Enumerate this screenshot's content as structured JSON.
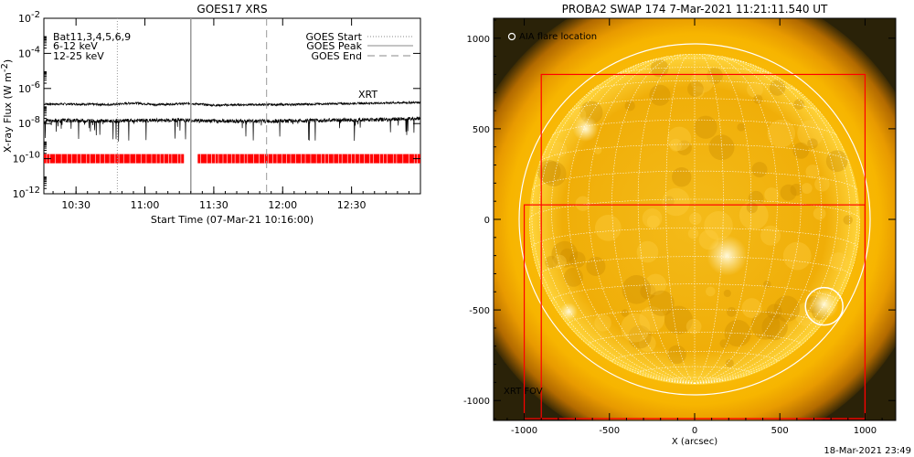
{
  "footer_timestamp": "18-Mar-2021 23:49",
  "chart_data": [
    {
      "type": "line",
      "title": "GOES17 XRS",
      "xlabel": "Start Time (07-Mar-21 10:16:00)",
      "ylabel": "X-ray Flux (W m",
      "ylabel_sup": "-2",
      "ylabel_close": ")",
      "xlim": [
        "10:16",
        "13:00"
      ],
      "ylim": [
        1e-12,
        0.01
      ],
      "yscale": "log",
      "x_ticks": [
        "10:30",
        "11:00",
        "11:30",
        "12:00",
        "12:30"
      ],
      "y_ticks": [
        {
          "base": "10",
          "exp": "-12",
          "value": 1e-12
        },
        {
          "base": "10",
          "exp": "-10",
          "value": 1e-10
        },
        {
          "base": "10",
          "exp": "-8",
          "value": 1e-08
        },
        {
          "base": "10",
          "exp": "-6",
          "value": 1e-06
        },
        {
          "base": "10",
          "exp": "-4",
          "value": 0.0001
        },
        {
          "base": "10",
          "exp": "-2",
          "value": 0.01
        }
      ],
      "band_labels": [
        {
          "text": "Bat11,3,4,5,6,9",
          "color": "#000000"
        },
        {
          "text": "6-12 keV",
          "color": "#d000d0"
        },
        {
          "text": "12-25 keV",
          "color": "#20c020"
        }
      ],
      "legend": [
        {
          "text": "GOES Start",
          "style": "dotted"
        },
        {
          "text": "GOES Peak",
          "style": "solid"
        },
        {
          "text": "GOES End",
          "style": "dashed"
        }
      ],
      "legend_position": "top-right",
      "series": [
        {
          "name": "",
          "color": "#000000",
          "x": [
            "10:16",
            "10:30",
            "10:45",
            "10:55",
            "11:05",
            "11:20",
            "11:30",
            "11:45",
            "12:00",
            "12:15",
            "12:30",
            "12:45",
            "13:00"
          ],
          "values": [
            1.3e-07,
            1.3e-07,
            1.2e-07,
            1.5e-07,
            1.2e-07,
            1.4e-07,
            1.1e-07,
            1.2e-07,
            1.2e-07,
            1.3e-07,
            1.4e-07,
            1.5e-07,
            1.6e-07
          ]
        },
        {
          "name": "",
          "color": "#000000",
          "x": [
            "10:16",
            "10:30",
            "10:45",
            "11:00",
            "11:15",
            "11:30",
            "11:45",
            "12:00",
            "12:15",
            "12:30",
            "12:45",
            "13:00"
          ],
          "values": [
            1.4e-08,
            1.5e-08,
            1.4e-08,
            1.5e-08,
            1.6e-08,
            1.4e-08,
            1.4e-08,
            1.4e-08,
            1.5e-08,
            1.6e-08,
            1.7e-08,
            2e-08
          ]
        }
      ],
      "event_lines": {
        "start": "10:48",
        "peak": "11:20",
        "end": "11:53"
      },
      "xrt_label": "XRT",
      "xrt_label_color": "#ff0000",
      "xrt_coverage": [
        [
          "10:16",
          "11:17"
        ],
        [
          "11:23",
          "13:00"
        ]
      ],
      "xrt_level": 1e-10
    },
    {
      "type": "image",
      "title": "PROBA2 SWAP 174  7-Mar-2021 11:21:11.540 UT",
      "xlabel": "X (arcsec)",
      "ylabel": "",
      "xlim": [
        -1180,
        1180
      ],
      "ylim": [
        -1110,
        1110
      ],
      "x_ticks": [
        "-1000",
        "-500",
        "0",
        "500",
        "1000"
      ],
      "y_ticks": [
        "1000",
        "500",
        "0",
        "-500",
        "-1000"
      ],
      "solar_radius_arcsec": 970,
      "annotation": "AIA flare location",
      "flare_location": {
        "x": 760,
        "y": -480,
        "r": 110
      },
      "fov_label": "XRT FOV",
      "fov_color": "#ff0000",
      "xrt_fovs": [
        {
          "x0": -1000,
          "x1": 1000,
          "y0": -1100,
          "y1": 80
        },
        {
          "x0": -900,
          "x1": 1000,
          "y0": -1100,
          "y1": 800
        }
      ],
      "grid": true
    }
  ]
}
